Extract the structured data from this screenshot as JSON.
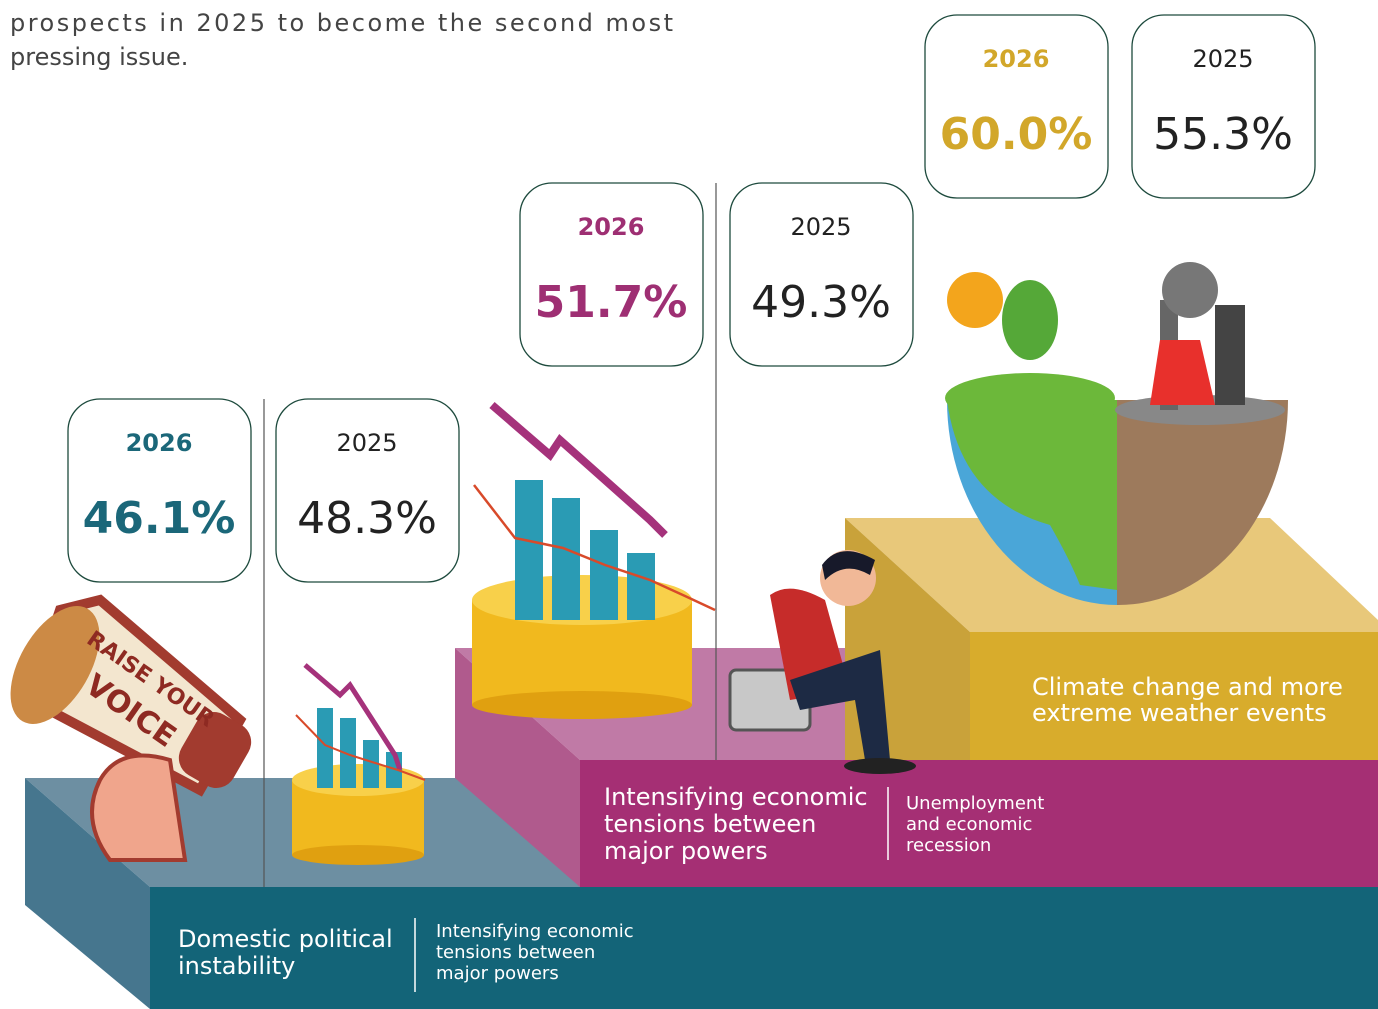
{
  "intro": {
    "lines": [
      "prospects in 2025 to become the second most",
      "pressing issue."
    ]
  },
  "tiers": [
    {
      "label_lines": [
        "Domestic political",
        "instability"
      ],
      "compare_lines": [
        "Intensifying economic",
        "tensions between",
        "major powers"
      ],
      "current": {
        "year": "2026",
        "value": "46.1%"
      },
      "previous": {
        "year": "2025",
        "value": "48.3%"
      }
    },
    {
      "label_lines": [
        "Intensifying economic",
        "tensions between",
        "major powers"
      ],
      "compare_lines": [
        "Unemployment",
        "and economic",
        "recession"
      ],
      "current": {
        "year": "2026",
        "value": "51.7%"
      },
      "previous": {
        "year": "2025",
        "value": "49.3%"
      }
    },
    {
      "label_lines": [
        "Climate change and more",
        "extreme weather events"
      ],
      "current": {
        "year": "2026",
        "value": "60.0%"
      },
      "previous": {
        "year": "2025",
        "value": "55.3%"
      }
    }
  ],
  "megaphone": {
    "lines": [
      "RAISE YOUR",
      "VOICE"
    ]
  }
}
